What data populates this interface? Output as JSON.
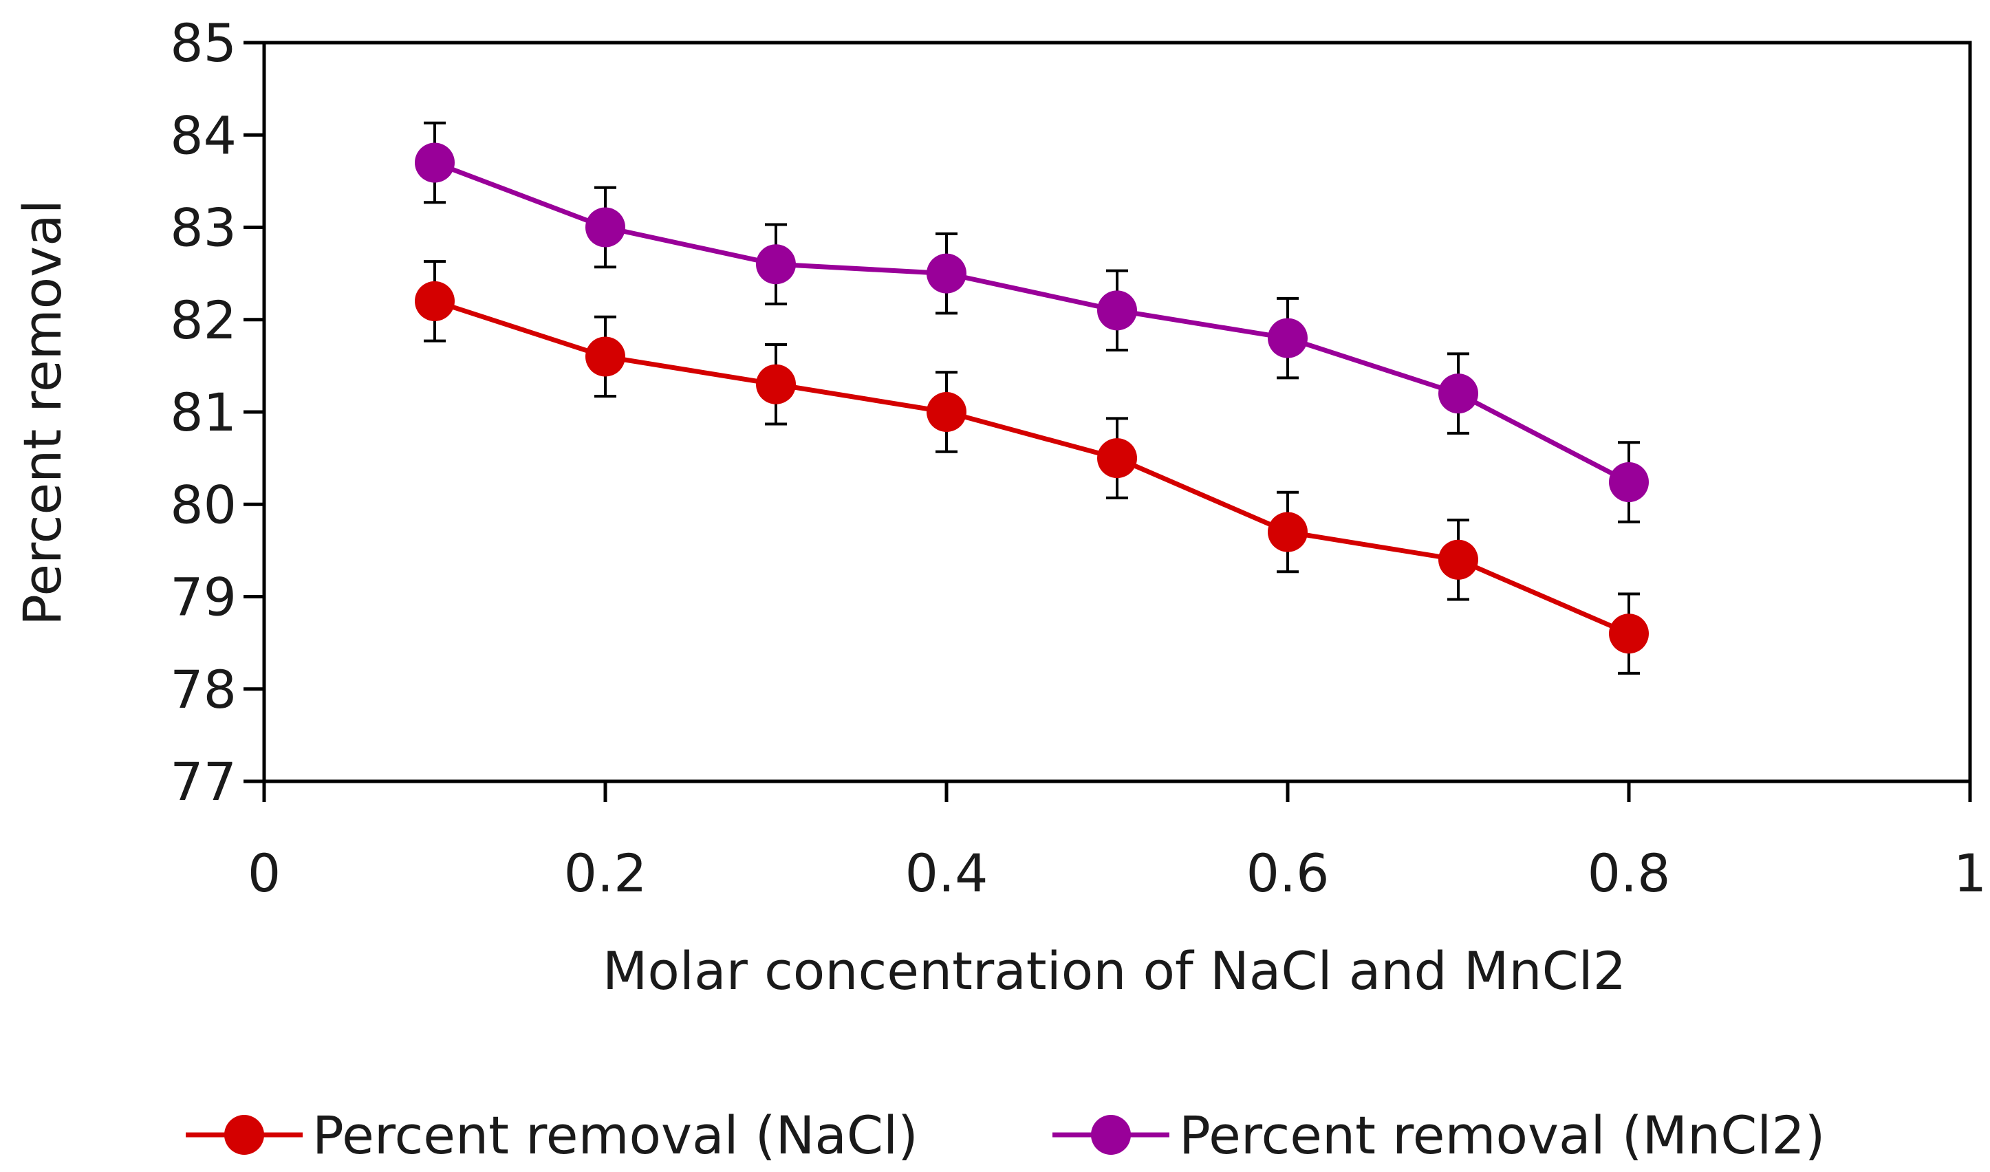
{
  "chart_data": {
    "type": "line",
    "xlabel": "Molar concentration of NaCl and MnCl2",
    "ylabel": "Percent removal",
    "xlim": [
      0,
      1
    ],
    "ylim": [
      77,
      85
    ],
    "xticks": [
      0,
      0.2,
      0.4,
      0.6,
      0.8,
      1
    ],
    "xtick_labels": [
      "0",
      "0.2",
      "0.4",
      "0.6",
      "0.8",
      "1"
    ],
    "yticks": [
      77,
      78,
      79,
      80,
      81,
      82,
      83,
      84,
      85
    ],
    "ytick_labels": [
      "77",
      "78",
      "79",
      "80",
      "81",
      "82",
      "83",
      "84",
      "85"
    ],
    "grid": false,
    "legend_position": "bottom",
    "error_bars": true,
    "error_bar_halfwidth": 0.43,
    "series": [
      {
        "name": "Percent removal (NaCl)",
        "color": "#d40000",
        "marker": "circle",
        "x": [
          0.1,
          0.2,
          0.3,
          0.4,
          0.5,
          0.6,
          0.7,
          0.8
        ],
        "y": [
          82.2,
          81.6,
          81.3,
          81.0,
          80.5,
          79.7,
          79.4,
          78.6
        ]
      },
      {
        "name": "Percent removal (MnCl2)",
        "color": "#990099",
        "marker": "circle",
        "x": [
          0.1,
          0.2,
          0.3,
          0.4,
          0.5,
          0.6,
          0.7,
          0.8
        ],
        "y": [
          83.7,
          83.0,
          82.6,
          82.5,
          82.1,
          81.8,
          81.2,
          80.24
        ]
      }
    ]
  }
}
